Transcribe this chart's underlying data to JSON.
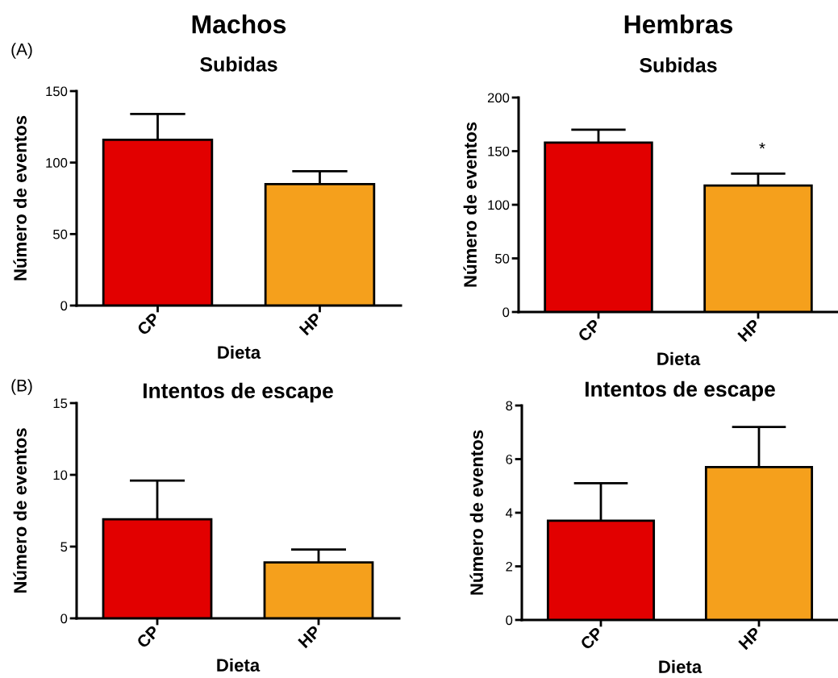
{
  "chart_data": [
    {
      "type": "bar",
      "title": "Machos",
      "subtitle": "Subidas",
      "xlabel": "Dieta",
      "ylabel": "Número de eventos",
      "categories": [
        "CP",
        "HP"
      ],
      "values": [
        116,
        85
      ],
      "colors": [
        "#e20000",
        "#f5a01c"
      ],
      "errors": [
        [
          116,
          134
        ],
        [
          85,
          94
        ]
      ],
      "ylim": [
        0,
        150
      ],
      "yticks": [
        0,
        50,
        100,
        150
      ],
      "annotations": [
        "(A)"
      ]
    },
    {
      "type": "bar",
      "title": "Hembras",
      "subtitle": "Subidas",
      "xlabel": "Dieta",
      "ylabel": "Número de eventos",
      "categories": [
        "CP",
        "HP"
      ],
      "values": [
        158,
        118
      ],
      "colors": [
        "#e20000",
        "#f5a01c"
      ],
      "errors": [
        [
          158,
          170
        ],
        [
          118,
          129
        ]
      ],
      "ylim": [
        0,
        200
      ],
      "yticks": [
        0,
        50,
        100,
        150,
        200
      ],
      "annotations": [
        "*"
      ]
    },
    {
      "type": "bar",
      "title": "Intentos de escape",
      "xlabel": "Dieta",
      "ylabel": "Número de eventos",
      "categories": [
        "CP",
        "HP"
      ],
      "values": [
        6.9,
        3.9
      ],
      "colors": [
        "#e20000",
        "#f5a01c"
      ],
      "errors": [
        [
          6.9,
          9.6
        ],
        [
          3.9,
          4.8
        ]
      ],
      "ylim": [
        0,
        15
      ],
      "yticks": [
        0,
        5,
        10,
        15
      ],
      "annotations": [
        "(B)"
      ]
    },
    {
      "type": "bar",
      "title": "Intentos de escape",
      "xlabel": "Dieta",
      "ylabel": "Número de eventos",
      "categories": [
        "CP",
        "HP"
      ],
      "values": [
        3.7,
        5.7
      ],
      "colors": [
        "#e20000",
        "#f5a01c"
      ],
      "errors": [
        [
          3.7,
          5.1
        ],
        [
          5.7,
          7.2
        ]
      ],
      "ylim": [
        0,
        8
      ],
      "yticks": [
        0,
        2,
        4,
        6,
        8
      ]
    }
  ]
}
